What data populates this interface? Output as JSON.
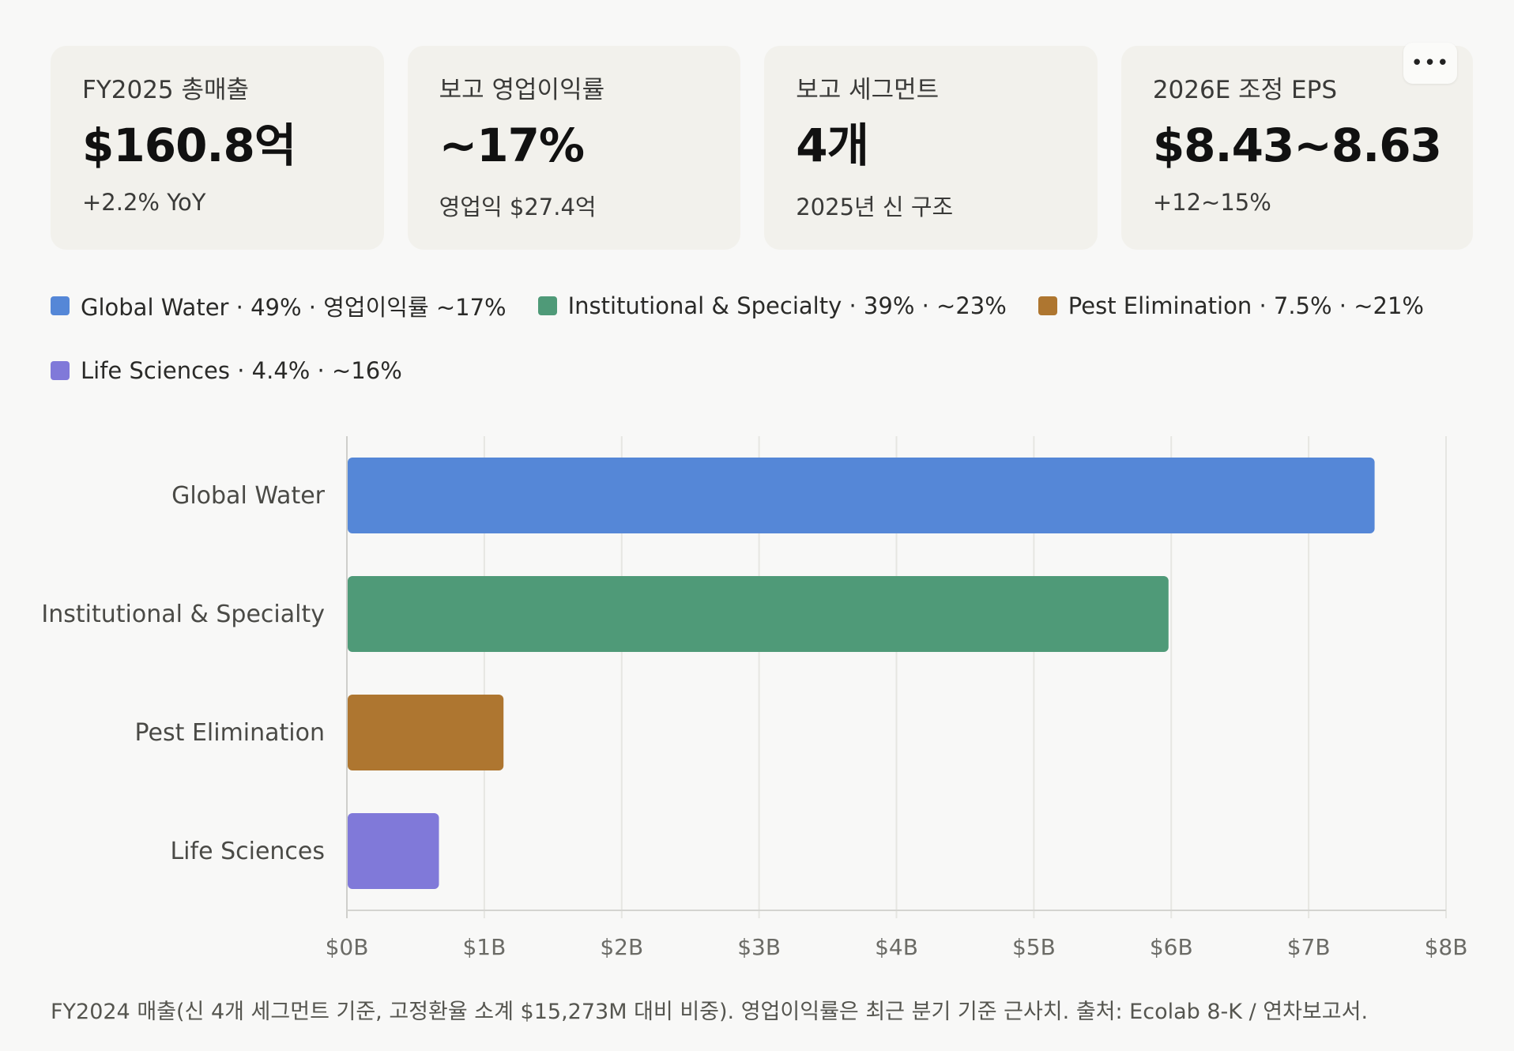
{
  "cards": [
    {
      "label": "FY2025 총매출",
      "value": "$160.8억",
      "sub": "+2.2% YoY"
    },
    {
      "label": "보고 영업이익률",
      "value": "~17%",
      "sub": "영업익 $27.4억"
    },
    {
      "label": "보고 세그먼트",
      "value": "4개",
      "sub": "2025년 신 구조"
    },
    {
      "label": "2026E 조정 EPS",
      "value": "$8.43~8.63",
      "sub": "+12~15%"
    }
  ],
  "more_button": {
    "label": "•••",
    "icon": "ellipsis-icon"
  },
  "legend": [
    {
      "label": "Global Water · 49% · 영업이익률 ~17%",
      "color": "#5587d7"
    },
    {
      "label": "Institutional & Specialty · 39% · ~23%",
      "color": "#4f9a78"
    },
    {
      "label": "Pest Elimination · 7.5% · ~21%",
      "color": "#ae7630"
    },
    {
      "label": "Life Sciences · 4.4% · ~16%",
      "color": "#8079d9"
    }
  ],
  "chart_data": {
    "type": "bar",
    "orientation": "horizontal",
    "categories": [
      "Global Water",
      "Institutional & Specialty",
      "Pest Elimination",
      "Life Sciences"
    ],
    "values": [
      7.48,
      5.98,
      1.14,
      0.67
    ],
    "colors": [
      "#5587d7",
      "#4f9a78",
      "#ae7630",
      "#8079d9"
    ],
    "unit": "B",
    "xlim": [
      0,
      8
    ],
    "xticks": [
      "$0B",
      "$1B",
      "$2B",
      "$3B",
      "$4B",
      "$5B",
      "$6B",
      "$7B",
      "$8B"
    ],
    "grid": true
  },
  "footnote": "FY2024 매출(신 4개 세그먼트 기준, 고정환율 소계 $15,273M 대비 비중). 영업이익률은 최근 분기 기준 근사치. 출처: Ecolab 8-K / 연차보고서."
}
